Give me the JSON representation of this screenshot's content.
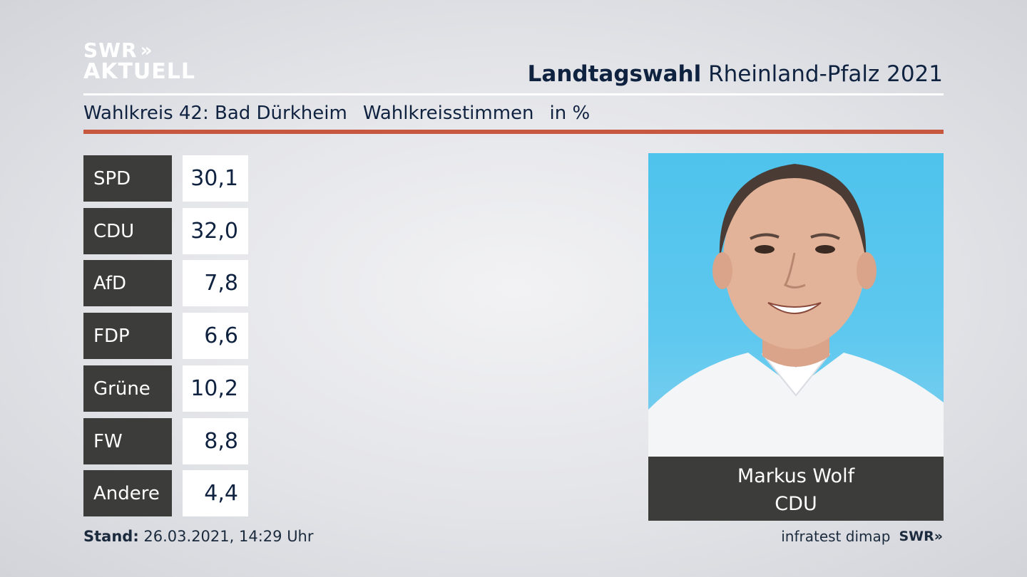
{
  "brand": {
    "logo_line1": "SWR",
    "logo_arrows": "»",
    "logo_line2": "AKTUELL"
  },
  "header": {
    "title_bold": "Landtagswahl",
    "title_rest": "Rheinland-Pfalz 2021"
  },
  "subheader": {
    "district": "Wahlkreis 42: Bad Dürkheim",
    "vote_type": "Wahlkreisstimmen",
    "unit": "in %"
  },
  "chart_data": {
    "type": "table",
    "categories": [
      "SPD",
      "CDU",
      "AfD",
      "FDP",
      "Grüne",
      "FW",
      "Andere"
    ],
    "values": [
      30.1,
      32.0,
      7.8,
      6.6,
      10.2,
      8.8,
      4.4
    ],
    "value_labels": [
      "30,1",
      "32,0",
      "7,8",
      "6,6",
      "10,2",
      "8,8",
      "4,4"
    ]
  },
  "candidate": {
    "name": "Markus Wolf",
    "party": "CDU"
  },
  "footer": {
    "stand_label": "Stand:",
    "stand_value": "26.03.2021, 14:29 Uhr",
    "source": "infratest dimap",
    "source_logo": "SWR"
  },
  "colors": {
    "accent_red": "#c8573f",
    "party_box": "#3c3c3b",
    "text_navy": "#0f2240",
    "photo_bg": "#4ec3ec"
  }
}
